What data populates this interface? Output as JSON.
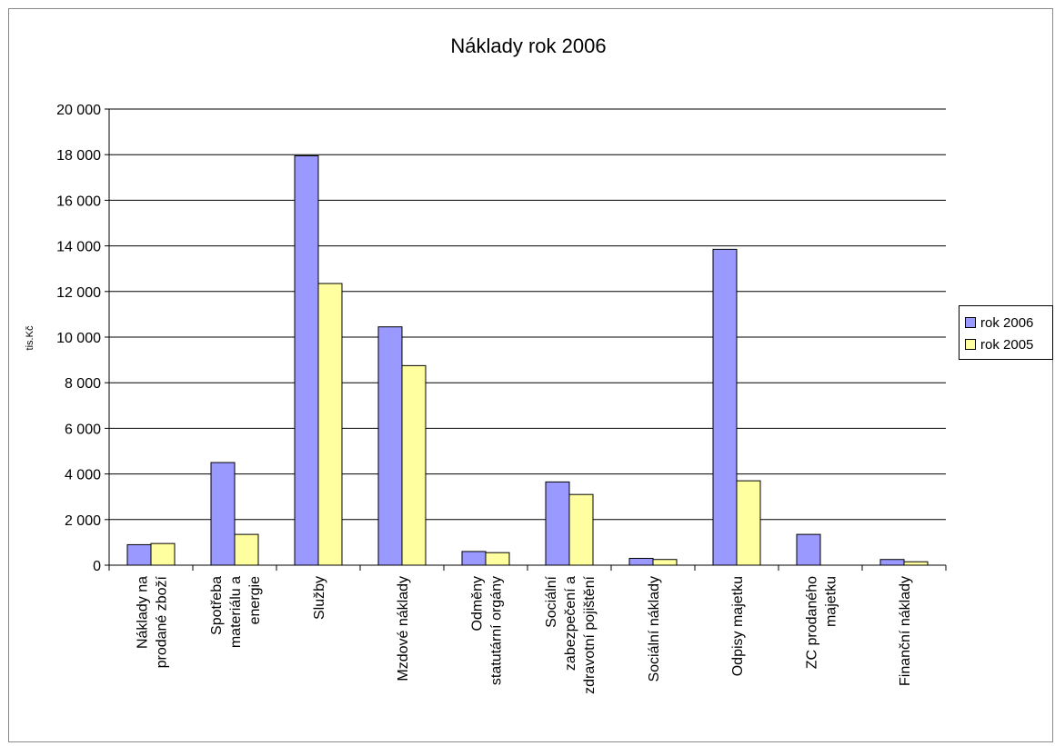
{
  "chart_data": {
    "type": "bar",
    "title": "Náklady rok 2006",
    "ylabel": "tis.Kč",
    "xlabel": "",
    "ylim": [
      0,
      20000
    ],
    "ytick_step": 2000,
    "grid": true,
    "legend_position": "right",
    "categories": [
      [
        "Náklady na",
        "prodané zboží"
      ],
      [
        "Spotřeba",
        "materiálu a",
        "energie"
      ],
      [
        "Služby"
      ],
      [
        "Mzdové náklady"
      ],
      [
        "Odměny",
        "statutární orgány"
      ],
      [
        "Sociální",
        "zabezpečení a",
        "zdravotní pojištění"
      ],
      [
        "Sociální náklady"
      ],
      [
        "Odpisy majetku"
      ],
      [
        "ZC prodaného",
        "majetku"
      ],
      [
        "Finanční náklady"
      ]
    ],
    "series": [
      {
        "name": "rok 2006",
        "color": "#9999ff",
        "values": [
          900,
          4500,
          17950,
          10450,
          600,
          3650,
          300,
          13850,
          1350,
          250
        ]
      },
      {
        "name": "rok 2005",
        "color": "#ffffa0",
        "values": [
          950,
          1350,
          12350,
          8750,
          550,
          3100,
          250,
          3700,
          0,
          150
        ]
      }
    ]
  }
}
